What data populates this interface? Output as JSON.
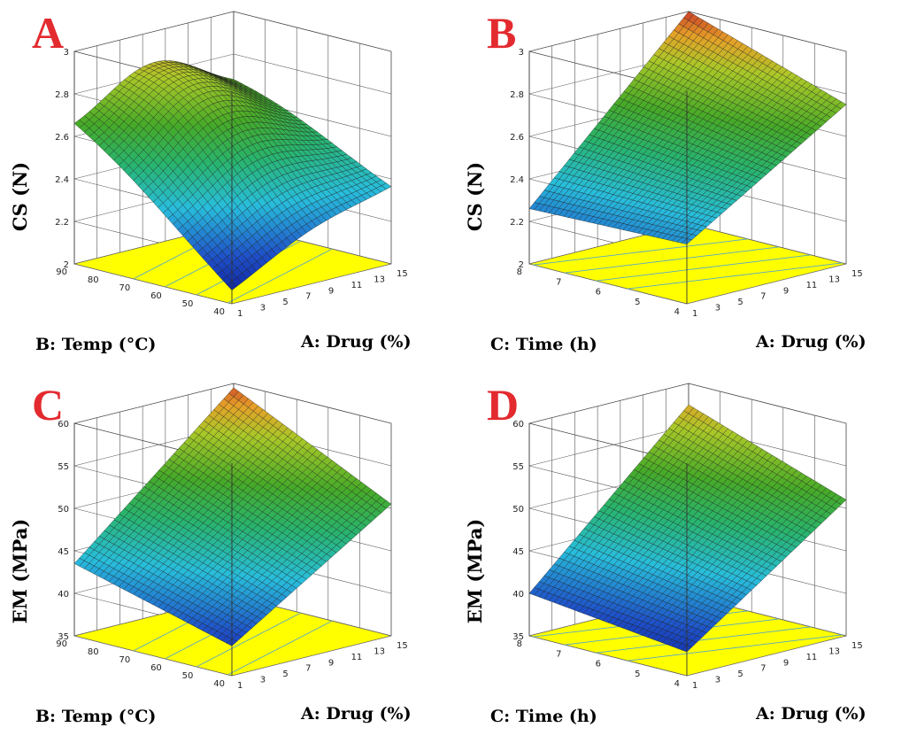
{
  "chart_data": [
    {
      "type": "surface3d",
      "panel_label": "A",
      "z_label": "CS (N)",
      "z_ticks": [
        "2",
        "2.2",
        "2.4",
        "2.6",
        "2.8",
        "3"
      ],
      "zlim": [
        2,
        3
      ],
      "y_label": "B: Temp (°C)",
      "y_ticks": [
        "40",
        "50",
        "60",
        "70",
        "80",
        "90"
      ],
      "ylim": [
        40,
        90
      ],
      "x_label": "A: Drug (%)",
      "x_ticks": [
        "1",
        "3",
        "5",
        "7",
        "9",
        "11",
        "13",
        "15"
      ],
      "xlim": [
        1,
        15
      ],
      "corner_values": {
        "drug1_low": 2.05,
        "drug15_low": 2.35,
        "drug1_high": 2.6,
        "drug15_high": 2.62
      },
      "peak": {
        "drug": 8,
        "temp": 78,
        "value": 2.8
      },
      "floor_color": "#ffff00"
    },
    {
      "type": "surface3d",
      "panel_label": "B",
      "z_label": "CS (N)",
      "z_ticks": [
        "2",
        "2.2",
        "2.4",
        "2.6",
        "2.8",
        "3"
      ],
      "zlim": [
        2,
        3
      ],
      "y_label": "C: Time (h)",
      "y_ticks": [
        "4",
        "5",
        "6",
        "7",
        "8"
      ],
      "ylim": [
        4,
        8
      ],
      "x_label": "A: Drug (%)",
      "x_ticks": [
        "1",
        "3",
        "5",
        "7",
        "9",
        "11",
        "13",
        "15"
      ],
      "xlim": [
        1,
        15
      ],
      "corner_values": {
        "drug1_low": 2.28,
        "drug15_low": 2.75,
        "drug1_high": 2.26,
        "drug15_high": 3.0
      },
      "floor_color": "#ffff00"
    },
    {
      "type": "surface3d",
      "panel_label": "C",
      "z_label": "EM (MPa)",
      "z_ticks": [
        "35",
        "40",
        "45",
        "50",
        "55",
        "60"
      ],
      "zlim": [
        35,
        60
      ],
      "y_label": "B: Temp (°C)",
      "y_ticks": [
        "40",
        "50",
        "60",
        "70",
        "80",
        "90"
      ],
      "ylim": [
        40,
        90
      ],
      "x_label": "A: Drug (%)",
      "x_ticks": [
        "1",
        "3",
        "5",
        "7",
        "9",
        "11",
        "13",
        "15"
      ],
      "xlim": [
        1,
        15
      ],
      "corner_values": {
        "drug1_low": 38.5,
        "drug15_low": 50.5,
        "drug1_high": 43.5,
        "drug15_high": 59.5
      },
      "floor_color": "#ffff00"
    },
    {
      "type": "surface3d",
      "panel_label": "D",
      "z_label": "EM (MPa)",
      "z_ticks": [
        "35",
        "40",
        "45",
        "50",
        "55",
        "60"
      ],
      "zlim": [
        35,
        60
      ],
      "y_label": "C: Time (h)",
      "y_ticks": [
        "4",
        "5",
        "6",
        "7",
        "8"
      ],
      "ylim": [
        4,
        8
      ],
      "x_label": "A: Drug (%)",
      "x_ticks": [
        "1",
        "3",
        "5",
        "7",
        "9",
        "11",
        "13",
        "15"
      ],
      "xlim": [
        1,
        15
      ],
      "corner_values": {
        "drug1_low": 37.8,
        "drug15_low": 51.0,
        "drug1_high": 40.0,
        "drug15_high": 57.5
      },
      "floor_color": "#ffff00"
    }
  ]
}
